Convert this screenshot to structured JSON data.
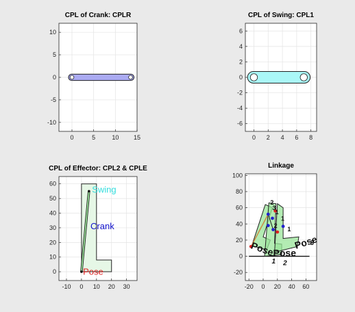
{
  "colors": {
    "background": "#eaeaea",
    "axes_bg": "#ffffff",
    "crank_fill": "#aaaaf2",
    "swing_fill": "#aaf7f7",
    "effector_fill": "#e6f7e6",
    "pose_fill": "#99e699",
    "swing_label": "#33dddd",
    "crank_label": "#1111cc",
    "pose_label": "#dd2222"
  },
  "chart_data": [
    {
      "type": "line",
      "title": "CPL of Crank: CPLR",
      "xlim": [
        -3,
        15
      ],
      "ylim": [
        -12,
        12
      ],
      "xticks": [
        "0",
        "5",
        "10",
        "15"
      ],
      "yticks": [
        "-10",
        "-5",
        "0",
        "5",
        "10"
      ],
      "xtick_values": [
        0,
        5,
        10,
        15
      ],
      "ytick_values": [
        -10,
        -5,
        0,
        5,
        10
      ],
      "pins": [
        [
          0,
          0
        ],
        [
          13.5,
          0
        ]
      ],
      "link_half_width": 0.7
    },
    {
      "type": "line",
      "title": "CPL of Swing: CPL1",
      "xlim": [
        -1.2,
        8.8
      ],
      "ylim": [
        -7,
        7
      ],
      "xticks": [
        "0",
        "2",
        "4",
        "6",
        "8"
      ],
      "yticks": [
        "-6",
        "-4",
        "-2",
        "0",
        "2",
        "4",
        "6"
      ],
      "xtick_values": [
        0,
        2,
        4,
        6,
        8
      ],
      "ytick_values": [
        -6,
        -4,
        -2,
        0,
        2,
        4,
        6
      ],
      "pins": [
        [
          0,
          0
        ],
        [
          7,
          0
        ]
      ],
      "link_half_width": 0.75
    },
    {
      "type": "line",
      "title": "CPL of Effector: CPL2 & CPLE",
      "xlim": [
        -15,
        37
      ],
      "ylim": [
        -6,
        65
      ],
      "xticks": [
        "-10",
        "0",
        "10",
        "20",
        "30"
      ],
      "yticks": [
        "0",
        "10",
        "20",
        "30",
        "40",
        "50",
        "60"
      ],
      "xtick_values": [
        -10,
        0,
        10,
        20,
        30
      ],
      "ytick_values": [
        0,
        10,
        20,
        30,
        40,
        50,
        60
      ],
      "outline": [
        [
          0,
          0
        ],
        [
          0,
          60
        ],
        [
          10,
          60
        ],
        [
          10,
          8
        ],
        [
          20,
          8
        ],
        [
          20,
          0
        ]
      ],
      "link": [
        [
          0,
          0
        ],
        [
          5,
          55
        ]
      ],
      "annotations": [
        {
          "text": "Swing",
          "x": 7,
          "y": 54
        },
        {
          "text": "Crank",
          "x": 6,
          "y": 29
        },
        {
          "text": "Pose",
          "x": 1,
          "y": -2
        }
      ]
    },
    {
      "type": "line",
      "title": "Linkage",
      "xlim": [
        -25,
        75
      ],
      "ylim": [
        -30,
        102
      ],
      "xticks": [
        "-20",
        "0",
        "20",
        "40",
        "60"
      ],
      "yticks": [
        "-20",
        "0",
        "20",
        "40",
        "60",
        "80",
        "100"
      ],
      "xtick_values": [
        -20,
        0,
        20,
        40,
        60
      ],
      "ytick_values": [
        -20,
        0,
        20,
        40,
        60,
        80,
        100
      ],
      "ground_line": [
        [
          -20,
          0
        ],
        [
          65,
          0
        ]
      ],
      "poses": [
        {
          "label": "Pose",
          "subscript": "1",
          "outline": [
            [
              -16,
              13
            ],
            [
              3,
              64
            ],
            [
              13,
              60
            ],
            [
              0,
              24
            ],
            [
              10,
              20
            ],
            [
              5,
              8
            ]
          ]
        },
        {
          "label": "Pose",
          "subscript": "2",
          "outline": [
            [
              2,
              0
            ],
            [
              8,
              66
            ],
            [
              18,
              65
            ],
            [
              16,
              16
            ],
            [
              26,
              15
            ],
            [
              26,
              2
            ]
          ]
        },
        {
          "label": "Pose",
          "subscript": "3",
          "outline": [
            [
              16,
              5
            ],
            [
              20,
              65
            ],
            [
              28,
              60
            ],
            [
              28,
              22
            ],
            [
              50,
              24
            ],
            [
              48,
              12
            ]
          ]
        }
      ],
      "crank_points": [
        [
          -17,
          12
        ],
        [
          7,
          52
        ],
        [
          13,
          47
        ],
        [
          17,
          56
        ],
        [
          14,
          33
        ],
        [
          28,
          37
        ],
        [
          20,
          30
        ],
        [
          7,
          38
        ]
      ],
      "small_labels": [
        {
          "text": "2",
          "x": 10,
          "y": 64
        },
        {
          "text": "3",
          "x": 13,
          "y": 57
        },
        {
          "text": "1",
          "x": 17,
          "y": 52
        },
        {
          "text": "1",
          "x": 25,
          "y": 44
        },
        {
          "text": "1",
          "x": 34,
          "y": 31
        },
        {
          "text": "2",
          "x": 15,
          "y": 35
        }
      ]
    }
  ]
}
